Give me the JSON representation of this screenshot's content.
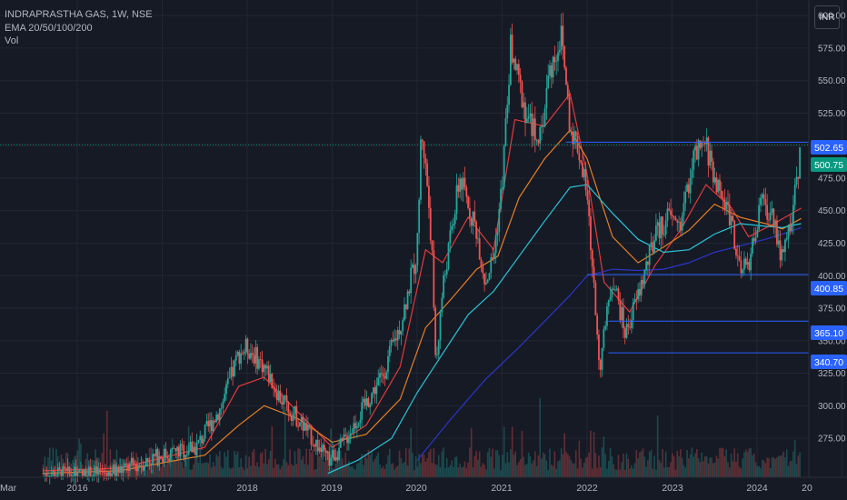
{
  "legend": {
    "symbol_line": "INDRAPRASTHA GAS, 1W, NSE",
    "ema_line": "EMA 20/50/100/200",
    "vol_line": "Vol"
  },
  "currency_button": "INR",
  "colors": {
    "background": "#161a25",
    "up": "#26a69a",
    "down": "#ef5350",
    "ema20": "#e03a3a",
    "ema50": "#e67e22",
    "ema100": "#26c6da",
    "ema200": "#2b35c8",
    "level_line": "#2962ff",
    "last_price_tag": "#089981"
  },
  "chart_data": {
    "type": "candlestick",
    "title": "INDRAPRASTHA GAS, 1W, NSE",
    "ylim": [
      245,
      612
    ],
    "y_ticks": [
      275,
      300,
      325,
      350,
      375,
      400,
      425,
      450,
      475,
      500,
      525,
      550,
      575,
      600
    ],
    "x_axis_labels": [
      "Mar",
      "2016",
      "2017",
      "2018",
      "2019",
      "2020",
      "2021",
      "2022",
      "2023",
      "2024",
      "20"
    ],
    "price_tags": [
      {
        "value": 502.65,
        "label": "502.65",
        "kind": "level"
      },
      {
        "value": 500.75,
        "label": "500.75",
        "kind": "last"
      },
      {
        "value": 400.85,
        "label": "400.85",
        "kind": "level"
      },
      {
        "value": 365.1,
        "label": "365.10",
        "kind": "level"
      },
      {
        "value": 340.7,
        "label": "340.70",
        "kind": "level"
      }
    ],
    "horizontal_levels": [
      {
        "value": 502.65,
        "from": 2021.75
      },
      {
        "value": 400.85,
        "from": 2022.0
      },
      {
        "value": 365.1,
        "from": 2022.25
      },
      {
        "value": 340.7,
        "from": 2022.25
      }
    ],
    "price_path": [
      [
        2015.6,
        248
      ],
      [
        2016.0,
        246
      ],
      [
        2016.5,
        250
      ],
      [
        2017.0,
        262
      ],
      [
        2017.4,
        268
      ],
      [
        2017.7,
        300
      ],
      [
        2017.9,
        340
      ],
      [
        2018.0,
        345
      ],
      [
        2018.2,
        330
      ],
      [
        2018.4,
        305
      ],
      [
        2018.6,
        290
      ],
      [
        2018.8,
        272
      ],
      [
        2018.95,
        258
      ],
      [
        2019.1,
        268
      ],
      [
        2019.35,
        296
      ],
      [
        2019.6,
        325
      ],
      [
        2019.8,
        362
      ],
      [
        2020.0,
        418
      ],
      [
        2020.05,
        515
      ],
      [
        2020.12,
        470
      ],
      [
        2020.17,
        425
      ],
      [
        2020.22,
        330
      ],
      [
        2020.3,
        390
      ],
      [
        2020.5,
        475
      ],
      [
        2020.7,
        435
      ],
      [
        2020.8,
        395
      ],
      [
        2020.9,
        415
      ],
      [
        2021.0,
        470
      ],
      [
        2021.1,
        575
      ],
      [
        2021.3,
        520
      ],
      [
        2021.45,
        505
      ],
      [
        2021.55,
        555
      ],
      [
        2021.7,
        585
      ],
      [
        2021.8,
        515
      ],
      [
        2021.9,
        498
      ],
      [
        2022.0,
        460
      ],
      [
        2022.08,
        390
      ],
      [
        2022.15,
        330
      ],
      [
        2022.3,
        400
      ],
      [
        2022.45,
        355
      ],
      [
        2022.6,
        385
      ],
      [
        2022.8,
        430
      ],
      [
        2022.95,
        445
      ],
      [
        2023.1,
        440
      ],
      [
        2023.25,
        490
      ],
      [
        2023.4,
        500
      ],
      [
        2023.55,
        465
      ],
      [
        2023.7,
        445
      ],
      [
        2023.8,
        400
      ],
      [
        2023.9,
        410
      ],
      [
        2024.05,
        455
      ],
      [
        2024.2,
        445
      ],
      [
        2024.3,
        410
      ],
      [
        2024.45,
        462
      ],
      [
        2024.52,
        500.75
      ]
    ],
    "ema_series": [
      {
        "period": 20,
        "points": [
          [
            2015.6,
            250
          ],
          [
            2016.5,
            252
          ],
          [
            2017.5,
            268
          ],
          [
            2017.9,
            315
          ],
          [
            2018.2,
            322
          ],
          [
            2018.6,
            295
          ],
          [
            2019.0,
            268
          ],
          [
            2019.4,
            285
          ],
          [
            2019.8,
            330
          ],
          [
            2020.1,
            420
          ],
          [
            2020.3,
            410
          ],
          [
            2020.6,
            445
          ],
          [
            2020.9,
            420
          ],
          [
            2021.15,
            520
          ],
          [
            2021.5,
            515
          ],
          [
            2021.8,
            540
          ],
          [
            2022.0,
            478
          ],
          [
            2022.2,
            395
          ],
          [
            2022.5,
            372
          ],
          [
            2022.8,
            408
          ],
          [
            2023.1,
            435
          ],
          [
            2023.4,
            470
          ],
          [
            2023.7,
            452
          ],
          [
            2023.9,
            430
          ],
          [
            2024.2,
            440
          ],
          [
            2024.52,
            452
          ]
        ]
      },
      {
        "period": 50,
        "points": [
          [
            2015.6,
            248
          ],
          [
            2016.5,
            250
          ],
          [
            2017.5,
            262
          ],
          [
            2017.9,
            285
          ],
          [
            2018.2,
            300
          ],
          [
            2018.6,
            290
          ],
          [
            2019.0,
            272
          ],
          [
            2019.4,
            278
          ],
          [
            2019.8,
            305
          ],
          [
            2020.1,
            360
          ],
          [
            2020.4,
            382
          ],
          [
            2020.7,
            405
          ],
          [
            2020.95,
            415
          ],
          [
            2021.2,
            460
          ],
          [
            2021.5,
            490
          ],
          [
            2021.8,
            512
          ],
          [
            2022.0,
            490
          ],
          [
            2022.3,
            430
          ],
          [
            2022.6,
            410
          ],
          [
            2022.9,
            422
          ],
          [
            2023.2,
            435
          ],
          [
            2023.5,
            455
          ],
          [
            2023.8,
            445
          ],
          [
            2024.1,
            440
          ],
          [
            2024.3,
            436
          ],
          [
            2024.52,
            444
          ]
        ]
      },
      {
        "period": 100,
        "points": [
          [
            2018.95,
            248
          ],
          [
            2019.3,
            258
          ],
          [
            2019.7,
            275
          ],
          [
            2020.0,
            310
          ],
          [
            2020.3,
            340
          ],
          [
            2020.6,
            370
          ],
          [
            2020.9,
            388
          ],
          [
            2021.2,
            415
          ],
          [
            2021.5,
            442
          ],
          [
            2021.8,
            468
          ],
          [
            2022.0,
            470
          ],
          [
            2022.3,
            448
          ],
          [
            2022.6,
            428
          ],
          [
            2022.9,
            418
          ],
          [
            2023.2,
            420
          ],
          [
            2023.5,
            432
          ],
          [
            2023.8,
            440
          ],
          [
            2024.1,
            438
          ],
          [
            2024.3,
            437
          ],
          [
            2024.52,
            440
          ]
        ]
      },
      {
        "period": 200,
        "points": [
          [
            2020.0,
            258
          ],
          [
            2020.4,
            290
          ],
          [
            2020.8,
            320
          ],
          [
            2021.2,
            345
          ],
          [
            2021.5,
            365
          ],
          [
            2021.8,
            385
          ],
          [
            2022.0,
            400
          ],
          [
            2022.3,
            405
          ],
          [
            2022.6,
            404
          ],
          [
            2022.9,
            405
          ],
          [
            2023.2,
            410
          ],
          [
            2023.5,
            418
          ],
          [
            2023.8,
            423
          ],
          [
            2024.1,
            428
          ],
          [
            2024.3,
            432
          ],
          [
            2024.52,
            437
          ]
        ]
      }
    ]
  }
}
